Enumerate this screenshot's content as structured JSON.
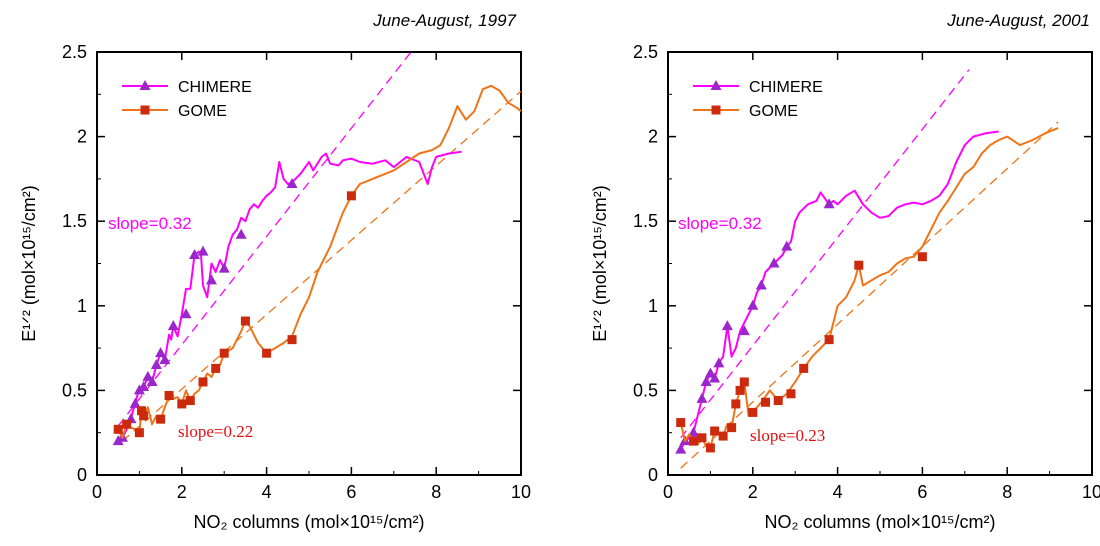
{
  "colors": {
    "chimere": "#ff00ff",
    "chimere_marker": "#9a26cc",
    "gome": "#ef7417",
    "gome_marker": "#cc2a0c",
    "slope_chimere_text": "#ff00ff",
    "slope_gome_text": "#e01010"
  },
  "chart_data": [
    {
      "type": "line",
      "period": "June-August, 1997",
      "xlabel": "NO₂ columns (mol×10¹⁵/cm²)",
      "ylabel": "E¹ᐟ² (mol×10¹⁵/cm²)",
      "xlim": [
        0,
        10
      ],
      "ylim": [
        0,
        2.5
      ],
      "xticks": [
        0,
        2,
        4,
        6,
        8,
        10
      ],
      "yticks": [
        0,
        0.5,
        1,
        1.5,
        2,
        2.5
      ],
      "xtick_labels": [
        "0",
        "2",
        "4",
        "6",
        "8",
        "10"
      ],
      "ytick_labels": [
        "0",
        "0.5",
        "1",
        "1.5",
        "2",
        "2.5"
      ],
      "legend": {
        "position": "top-left",
        "entries": [
          "CHIMERE",
          "GOME"
        ]
      },
      "series": [
        {
          "name": "CHIMERE",
          "marker": "triangle",
          "x": [
            0.5,
            0.6,
            0.7,
            0.8,
            0.85,
            0.9,
            0.95,
            1.0,
            1.05,
            1.1,
            1.15,
            1.2,
            1.3,
            1.4,
            1.5,
            1.6,
            1.7,
            1.75,
            1.8,
            1.9,
            2.0,
            2.1,
            2.2,
            2.3,
            2.4,
            2.45,
            2.5,
            2.6,
            2.65,
            2.7,
            2.8,
            2.9,
            3.0,
            3.1,
            3.2,
            3.3,
            3.4,
            3.5,
            3.6,
            3.7,
            3.8,
            3.9,
            4.0,
            4.1,
            4.2,
            4.3,
            4.4,
            4.5,
            4.6,
            4.8,
            5.0,
            5.1,
            5.3,
            5.4,
            5.5,
            5.7,
            5.8,
            6.0,
            6.2,
            6.5,
            6.8,
            7.0,
            7.3,
            7.6,
            7.8,
            7.9,
            8.0,
            8.3,
            8.6
          ],
          "y": [
            0.2,
            0.22,
            0.27,
            0.33,
            0.38,
            0.42,
            0.47,
            0.5,
            0.48,
            0.52,
            0.55,
            0.58,
            0.55,
            0.65,
            0.72,
            0.68,
            0.83,
            0.8,
            0.88,
            0.82,
            0.95,
            1.1,
            1.1,
            1.3,
            1.32,
            1.31,
            1.12,
            1.05,
            1.15,
            1.25,
            1.2,
            1.27,
            1.22,
            1.35,
            1.42,
            1.45,
            1.52,
            1.5,
            1.57,
            1.6,
            1.58,
            1.62,
            1.65,
            1.67,
            1.7,
            1.85,
            1.75,
            1.72,
            1.73,
            1.78,
            1.85,
            1.8,
            1.88,
            1.9,
            1.84,
            1.83,
            1.86,
            1.87,
            1.85,
            1.84,
            1.86,
            1.82,
            1.88,
            1.85,
            1.72,
            1.82,
            1.88,
            1.9,
            1.91
          ],
          "marker_x": [
            0.5,
            0.6,
            0.8,
            0.9,
            1.0,
            1.1,
            1.2,
            1.3,
            1.4,
            1.5,
            1.6,
            1.8,
            2.1,
            2.3,
            2.5,
            2.7,
            3.0,
            3.4,
            4.6
          ],
          "marker_y": [
            0.2,
            0.22,
            0.33,
            0.42,
            0.5,
            0.52,
            0.58,
            0.55,
            0.65,
            0.72,
            0.68,
            0.88,
            0.95,
            1.3,
            1.32,
            1.15,
            1.22,
            1.42,
            1.72
          ]
        },
        {
          "name": "GOME",
          "marker": "square",
          "x": [
            0.5,
            0.6,
            0.7,
            0.8,
            0.9,
            1.0,
            1.05,
            1.1,
            1.2,
            1.3,
            1.4,
            1.5,
            1.6,
            1.7,
            1.8,
            1.9,
            2.0,
            2.1,
            2.2,
            2.3,
            2.4,
            2.5,
            2.6,
            2.7,
            2.8,
            2.9,
            3.0,
            3.2,
            3.4,
            3.5,
            3.6,
            3.8,
            4.0,
            4.2,
            4.4,
            4.6,
            4.8,
            5.0,
            5.2,
            5.5,
            5.8,
            6.0,
            6.2,
            6.5,
            6.8,
            7.0,
            7.3,
            7.6,
            7.9,
            8.1,
            8.3,
            8.5,
            8.7,
            8.9,
            9.1,
            9.3,
            9.5,
            9.7,
            9.9,
            10.0
          ],
          "y": [
            0.27,
            0.22,
            0.3,
            0.28,
            0.27,
            0.25,
            0.38,
            0.35,
            0.4,
            0.3,
            0.35,
            0.33,
            0.4,
            0.47,
            0.45,
            0.46,
            0.42,
            0.5,
            0.44,
            0.48,
            0.5,
            0.55,
            0.6,
            0.58,
            0.63,
            0.65,
            0.72,
            0.75,
            0.85,
            0.91,
            0.88,
            0.78,
            0.72,
            0.75,
            0.78,
            0.82,
            0.95,
            1.05,
            1.2,
            1.35,
            1.55,
            1.65,
            1.72,
            1.75,
            1.78,
            1.8,
            1.85,
            1.9,
            1.92,
            1.95,
            2.05,
            2.18,
            2.1,
            2.15,
            2.28,
            2.3,
            2.27,
            2.2,
            2.17,
            2.15
          ],
          "marker_x": [
            0.5,
            0.7,
            1.0,
            1.05,
            1.1,
            1.5,
            1.7,
            2.0,
            2.2,
            2.5,
            2.8,
            3.0,
            3.5,
            4.0,
            4.6,
            6.0
          ],
          "marker_y": [
            0.27,
            0.3,
            0.25,
            0.38,
            0.35,
            0.33,
            0.47,
            0.42,
            0.44,
            0.55,
            0.63,
            0.72,
            0.91,
            0.72,
            0.8,
            1.65
          ]
        }
      ],
      "fits": [
        {
          "series": "CHIMERE",
          "slope": 0.32,
          "label": "slope=0.32",
          "x_range": [
            0.5,
            7.4
          ],
          "y_start": 0.29
        },
        {
          "series": "GOME",
          "slope": 0.22,
          "label": "slope=0.22",
          "x_range": [
            0.6,
            10.0
          ],
          "y_start": 0.2
        }
      ]
    },
    {
      "type": "line",
      "period": "June-August, 2001",
      "xlabel": "NO₂ columns (mol×10¹⁵/cm²)",
      "ylabel": "E¹ᐟ² (mol×10¹⁵/cm²)",
      "xlim": [
        0,
        10
      ],
      "ylim": [
        0,
        2.5
      ],
      "xticks": [
        0,
        2,
        4,
        6,
        8,
        10
      ],
      "yticks": [
        0,
        0.5,
        1,
        1.5,
        2,
        2.5
      ],
      "xtick_labels": [
        "0",
        "2",
        "4",
        "6",
        "8",
        "10"
      ],
      "ytick_labels": [
        "0",
        "0.5",
        "1",
        "1.5",
        "2",
        "2.5"
      ],
      "legend": {
        "position": "top-left",
        "entries": [
          "CHIMERE",
          "GOME"
        ]
      },
      "series": [
        {
          "name": "CHIMERE",
          "marker": "triangle",
          "x": [
            0.3,
            0.4,
            0.5,
            0.6,
            0.7,
            0.8,
            0.9,
            1.0,
            1.1,
            1.2,
            1.3,
            1.4,
            1.5,
            1.6,
            1.7,
            1.8,
            1.9,
            2.0,
            2.1,
            2.2,
            2.3,
            2.5,
            2.7,
            2.8,
            2.9,
            3.0,
            3.1,
            3.3,
            3.5,
            3.6,
            3.8,
            3.9,
            4.0,
            4.2,
            4.4,
            4.6,
            4.8,
            5.0,
            5.2,
            5.4,
            5.6,
            5.8,
            6.0,
            6.2,
            6.4,
            6.6,
            6.8,
            7.0,
            7.2,
            7.5,
            7.8
          ],
          "y": [
            0.15,
            0.2,
            0.22,
            0.25,
            0.35,
            0.45,
            0.55,
            0.6,
            0.57,
            0.66,
            0.7,
            0.88,
            0.7,
            0.75,
            0.85,
            0.9,
            0.95,
            1.0,
            1.08,
            1.12,
            1.2,
            1.25,
            1.3,
            1.35,
            1.38,
            1.5,
            1.55,
            1.6,
            1.62,
            1.67,
            1.6,
            1.62,
            1.6,
            1.65,
            1.68,
            1.6,
            1.55,
            1.52,
            1.53,
            1.58,
            1.6,
            1.61,
            1.6,
            1.62,
            1.65,
            1.72,
            1.85,
            1.95,
            2.0,
            2.02,
            2.03
          ],
          "marker_x": [
            0.3,
            0.4,
            0.6,
            0.8,
            0.9,
            1.0,
            1.1,
            1.2,
            1.4,
            1.8,
            2.0,
            2.2,
            2.5,
            2.8,
            3.8
          ],
          "marker_y": [
            0.15,
            0.2,
            0.25,
            0.45,
            0.55,
            0.6,
            0.57,
            0.66,
            0.88,
            0.85,
            1.0,
            1.12,
            1.25,
            1.35,
            1.6
          ]
        },
        {
          "name": "GOME",
          "marker": "square",
          "x": [
            0.3,
            0.4,
            0.5,
            0.6,
            0.7,
            0.8,
            0.9,
            1.0,
            1.1,
            1.2,
            1.3,
            1.4,
            1.5,
            1.6,
            1.7,
            1.8,
            1.9,
            2.0,
            2.2,
            2.4,
            2.6,
            2.8,
            3.0,
            3.2,
            3.4,
            3.6,
            3.8,
            4.0,
            4.2,
            4.4,
            4.5,
            4.6,
            4.8,
            5.0,
            5.2,
            5.4,
            5.6,
            5.8,
            6.0,
            6.2,
            6.4,
            6.6,
            6.8,
            7.0,
            7.2,
            7.4,
            7.6,
            7.8,
            8.0,
            8.3,
            8.6,
            8.9,
            9.2
          ],
          "y": [
            0.31,
            0.2,
            0.24,
            0.2,
            0.18,
            0.22,
            0.17,
            0.16,
            0.26,
            0.24,
            0.23,
            0.3,
            0.28,
            0.42,
            0.5,
            0.55,
            0.35,
            0.37,
            0.43,
            0.5,
            0.44,
            0.48,
            0.55,
            0.63,
            0.7,
            0.75,
            0.8,
            1.0,
            1.05,
            1.15,
            1.24,
            1.12,
            1.15,
            1.18,
            1.2,
            1.25,
            1.28,
            1.29,
            1.35,
            1.45,
            1.55,
            1.62,
            1.7,
            1.78,
            1.82,
            1.9,
            1.95,
            1.98,
            2.0,
            1.95,
            1.98,
            2.02,
            2.05
          ],
          "marker_x": [
            0.3,
            0.6,
            0.8,
            1.0,
            1.1,
            1.3,
            1.5,
            1.6,
            1.7,
            1.8,
            2.0,
            2.3,
            2.6,
            2.9,
            3.2,
            3.8,
            4.5,
            6.0
          ],
          "marker_y": [
            0.31,
            0.2,
            0.22,
            0.16,
            0.26,
            0.23,
            0.28,
            0.42,
            0.5,
            0.55,
            0.37,
            0.43,
            0.44,
            0.48,
            0.63,
            0.8,
            1.24,
            1.29
          ]
        }
      ],
      "fits": [
        {
          "series": "CHIMERE",
          "slope": 0.32,
          "label": "slope=0.32",
          "x_range": [
            0.3,
            7.1
          ],
          "y_start": 0.22
        },
        {
          "series": "GOME",
          "slope": 0.23,
          "label": "slope=0.23",
          "x_range": [
            0.3,
            9.2
          ],
          "y_start": 0.04
        }
      ]
    }
  ]
}
